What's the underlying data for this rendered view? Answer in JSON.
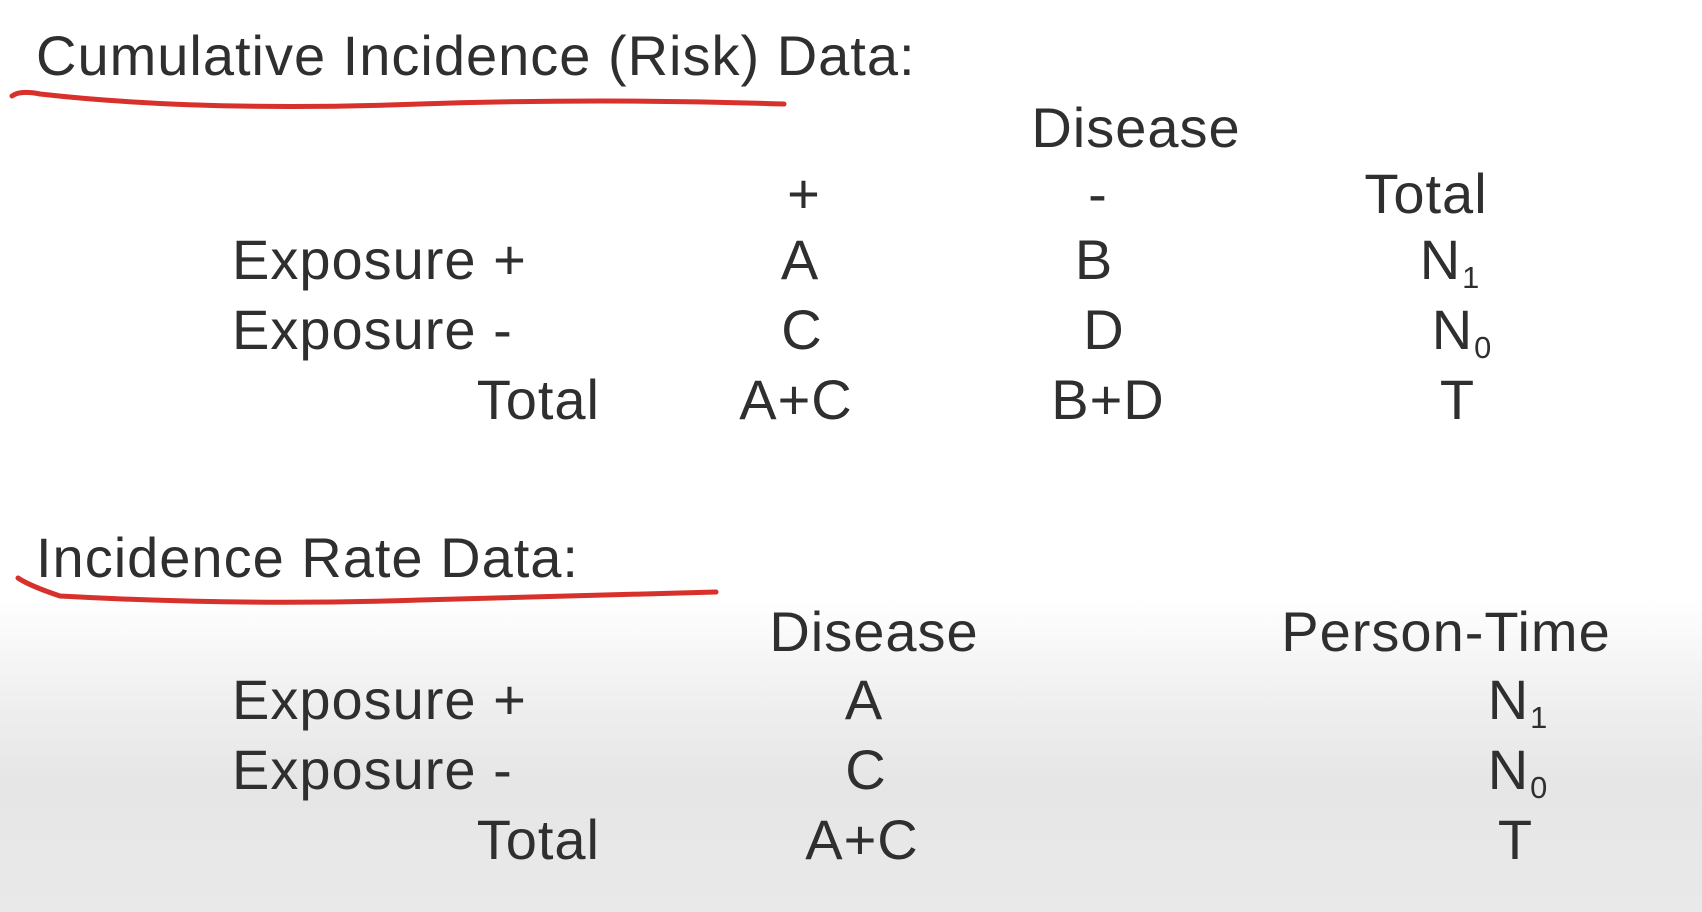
{
  "section1": {
    "heading": "Cumulative Incidence (Risk) Data:",
    "group_header": "Disease",
    "col_headers": [
      "+",
      "-",
      "Total"
    ],
    "rows": [
      {
        "label": "Exposure +",
        "cells": [
          "A",
          "B"
        ],
        "total": {
          "base": "N",
          "sub": "1"
        }
      },
      {
        "label": "Exposure -",
        "cells": [
          "C",
          "D"
        ],
        "total": {
          "base": "N",
          "sub": "0"
        }
      },
      {
        "label": "Total",
        "cells": [
          "A+C",
          "B+D"
        ],
        "total": {
          "base": "T",
          "sub": ""
        }
      }
    ]
  },
  "section2": {
    "heading": "Incidence Rate Data:",
    "col_headers": [
      "Disease",
      "Person-Time"
    ],
    "rows": [
      {
        "label": "Exposure +",
        "cells": [
          "A"
        ],
        "total": {
          "base": "N",
          "sub": "1"
        }
      },
      {
        "label": "Exposure -",
        "cells": [
          "C"
        ],
        "total": {
          "base": "N",
          "sub": "0"
        }
      },
      {
        "label": "Total",
        "cells": [
          "A+C"
        ],
        "total": {
          "base": "T",
          "sub": ""
        }
      }
    ]
  },
  "annotation_color": "#d8302a"
}
